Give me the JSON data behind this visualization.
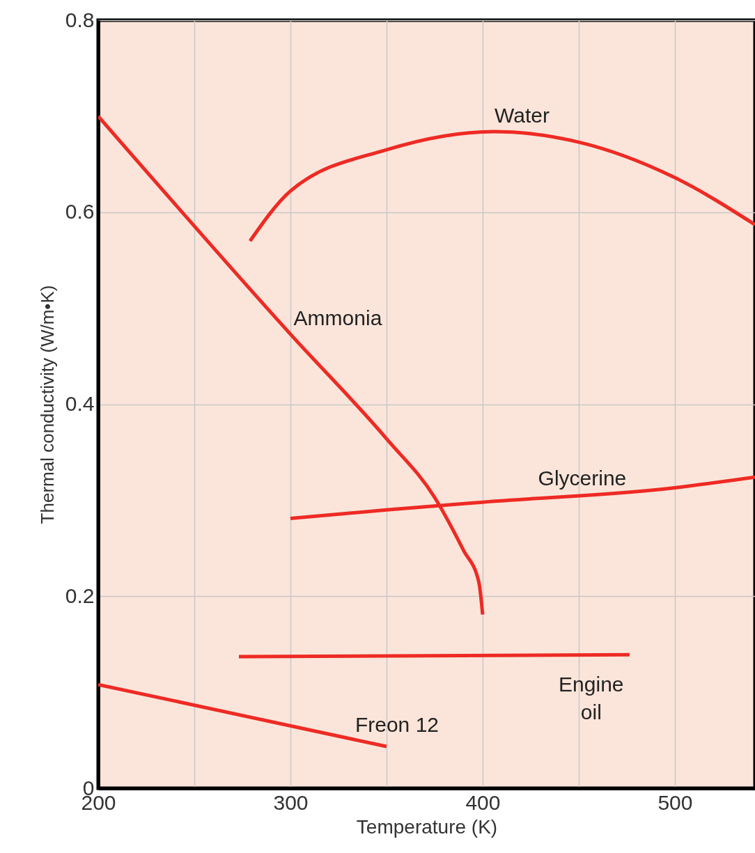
{
  "chart_data": {
    "type": "line",
    "xlabel": "Temperature (K)",
    "ylabel": "Thermal conductivity (W/m•K)",
    "xlim": [
      200,
      541.7
    ],
    "ylim": [
      0,
      0.8
    ],
    "xticks": [
      200,
      {
        "value": 250,
        "label": null
      },
      300,
      {
        "value": 350,
        "label": null
      },
      400,
      {
        "value": 450,
        "label": null
      },
      500
    ],
    "yticks": [
      0,
      0.2,
      0.4,
      0.6,
      0.8
    ],
    "grid": true,
    "line_style": "solid",
    "marker": "none",
    "series": [
      {
        "name": "Water",
        "color": "#ee2a24",
        "x": [
          279,
          300,
          350,
          406,
          450,
          500,
          541.7
        ],
        "values": [
          0.57,
          0.622,
          0.665,
          0.684,
          0.673,
          0.636,
          0.587
        ]
      },
      {
        "name": "Ammonia",
        "color": "#ee2a24",
        "x": [
          200,
          300,
          350,
          375,
          390,
          398,
          400
        ],
        "values": [
          0.7,
          0.473,
          0.364,
          0.303,
          0.248,
          0.215,
          0.181
        ]
      },
      {
        "name": "Glycerine",
        "color": "#ee2a24",
        "x": [
          300,
          350,
          400,
          500,
          541.7
        ],
        "values": [
          0.281,
          0.29,
          0.298,
          0.313,
          0.324
        ]
      },
      {
        "name": "Engine oil",
        "color": "#ee2a24",
        "x": [
          273.2,
          476.4
        ],
        "values": [
          0.137,
          0.139
        ]
      },
      {
        "name": "Freon 12",
        "color": "#ee2a24",
        "x": [
          200,
          350
        ],
        "values": [
          0.108,
          0.0435
        ]
      }
    ]
  }
}
